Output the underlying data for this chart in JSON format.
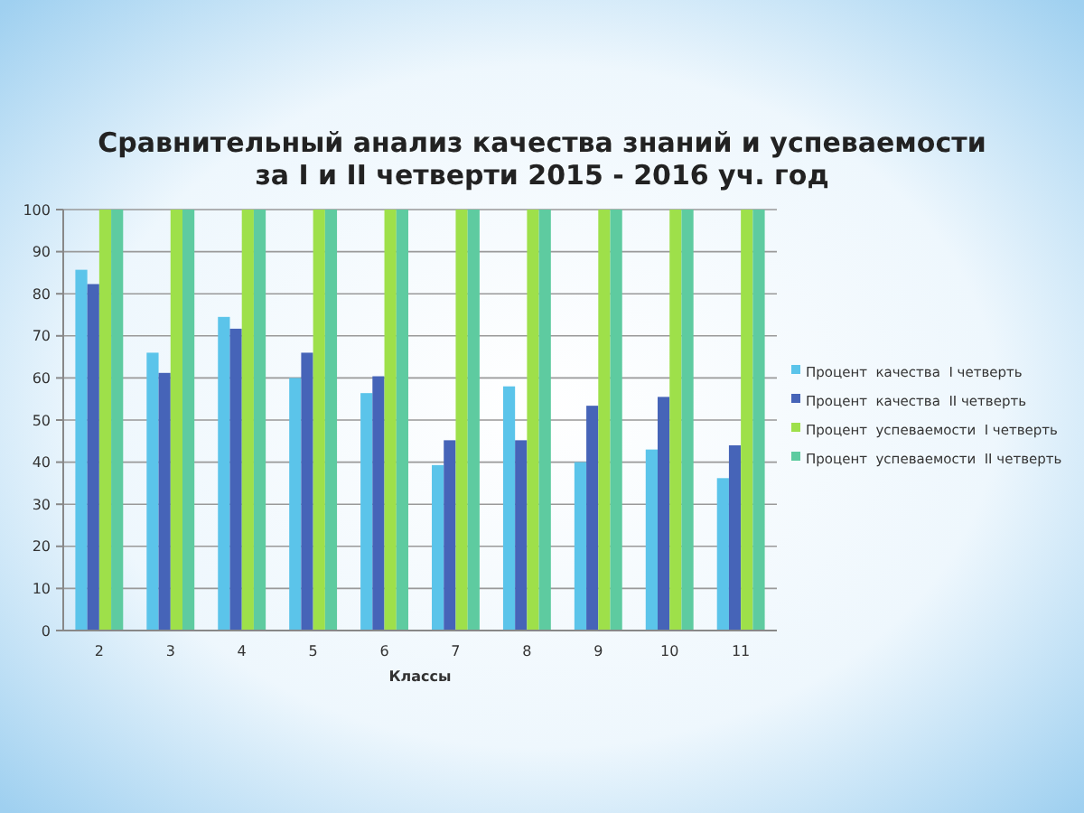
{
  "chart_data": {
    "type": "bar",
    "title": "Сравнительный анализ качества знаний и успеваемости\nза I и II четверти 2015 - 2016 уч. год",
    "xlabel": "Классы",
    "categories": [
      "2",
      "3",
      "4",
      "5",
      "6",
      "7",
      "8",
      "9",
      "10",
      "11"
    ],
    "series": [
      {
        "name": "Процент  качества  I четверть",
        "color": "#5bc4ea",
        "values": [
          85.7,
          66,
          74.5,
          60,
          56.4,
          39.3,
          58,
          40,
          43,
          36.2
        ]
      },
      {
        "name": "Процент  качества  II четверть",
        "color": "#4664b8",
        "values": [
          82.3,
          61.2,
          71.7,
          66,
          60.4,
          45.2,
          45.2,
          53.4,
          55.5,
          44
        ]
      },
      {
        "name": "Процент  успеваемости  I четверть",
        "color": "#9ee04a",
        "values": [
          100,
          100,
          100,
          100,
          100,
          100,
          100,
          100,
          100,
          100
        ]
      },
      {
        "name": "Процент  успеваемости  II четверть",
        "color": "#5ecba0",
        "values": [
          100,
          100,
          100,
          100,
          100,
          100,
          100,
          100,
          100,
          100
        ]
      }
    ],
    "ylim": [
      0,
      100
    ],
    "yticks": [
      0,
      10,
      20,
      30,
      40,
      50,
      60,
      70,
      80,
      90,
      100
    ],
    "grid": "y",
    "legend": "right"
  }
}
